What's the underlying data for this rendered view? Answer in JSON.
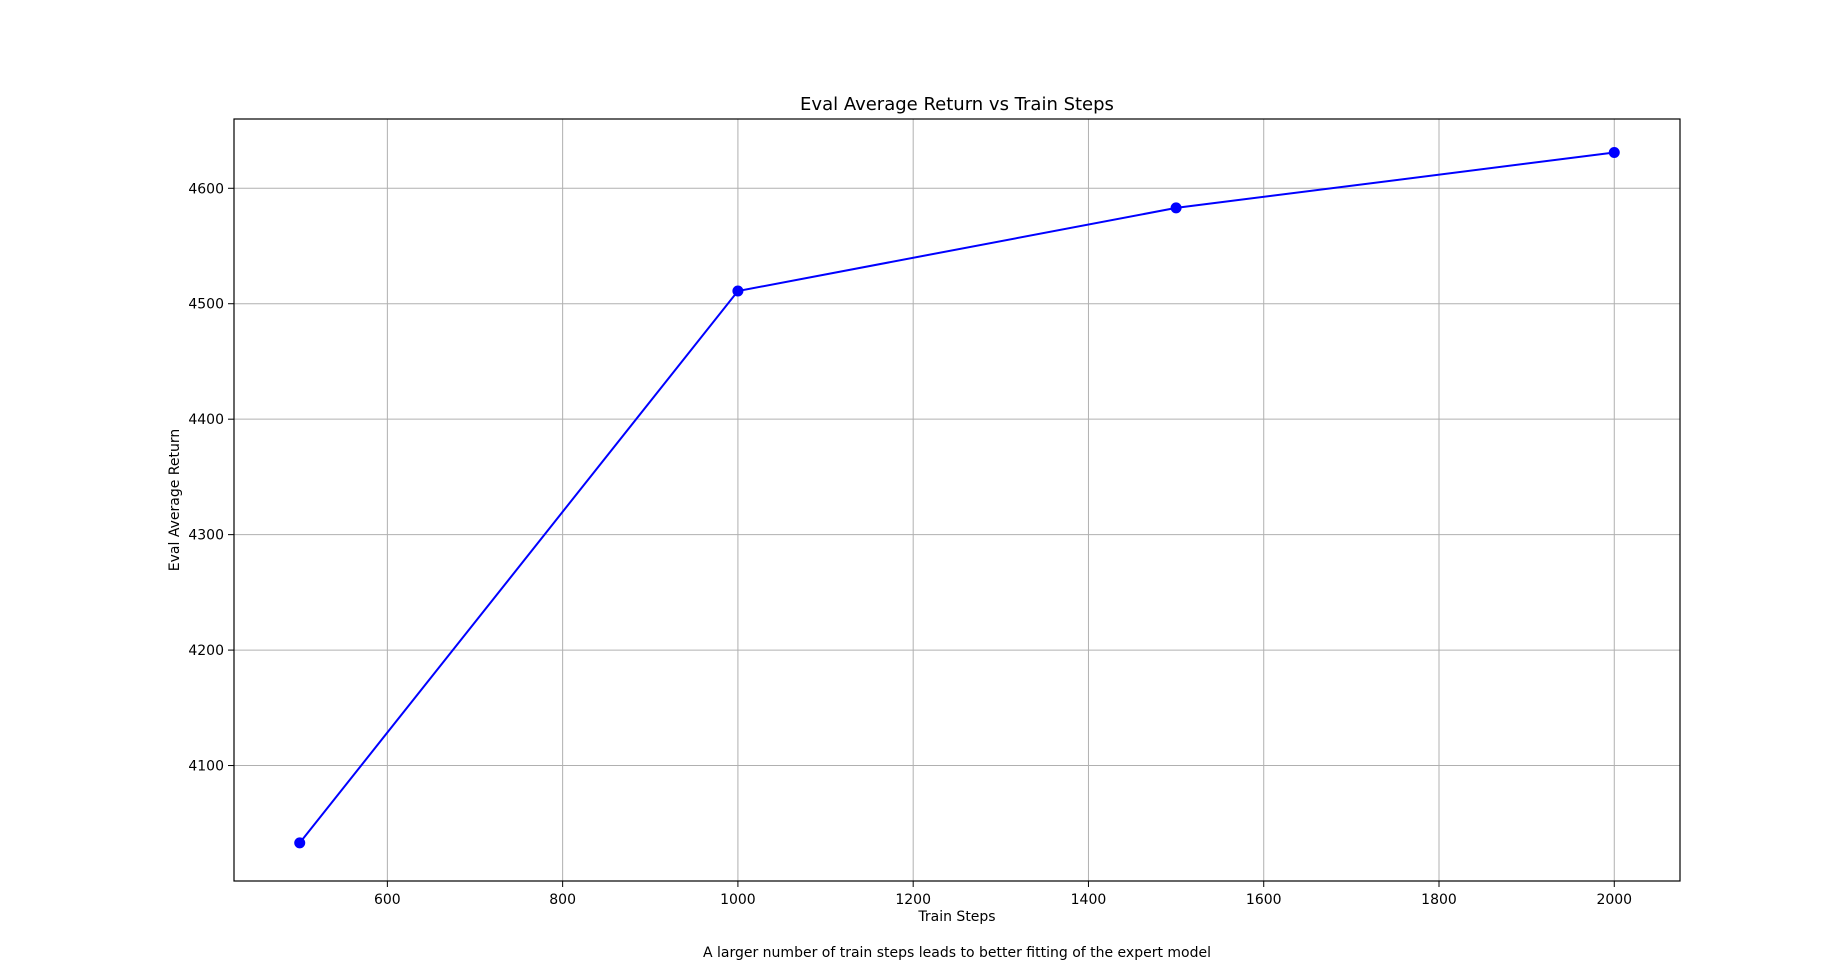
{
  "chart_data": {
    "type": "line",
    "title": "Eval Average Return vs Train Steps",
    "xlabel": "Train Steps",
    "ylabel": "Eval Average Return",
    "caption": "A larger number of train steps leads to better fitting of the expert model",
    "x": [
      500,
      1000,
      1500,
      2000
    ],
    "series": [
      {
        "values": [
          4033,
          4511,
          4583,
          4631
        ],
        "color": "#0000ff",
        "marker": "circle"
      }
    ],
    "xlim": [
      425,
      2075
    ],
    "ylim": [
      4000,
      4660
    ],
    "xticks": [
      600,
      800,
      1000,
      1200,
      1400,
      1600,
      1800,
      2000
    ],
    "yticks": [
      4100,
      4200,
      4300,
      4400,
      4500,
      4600
    ],
    "grid": true,
    "legend": "none"
  }
}
